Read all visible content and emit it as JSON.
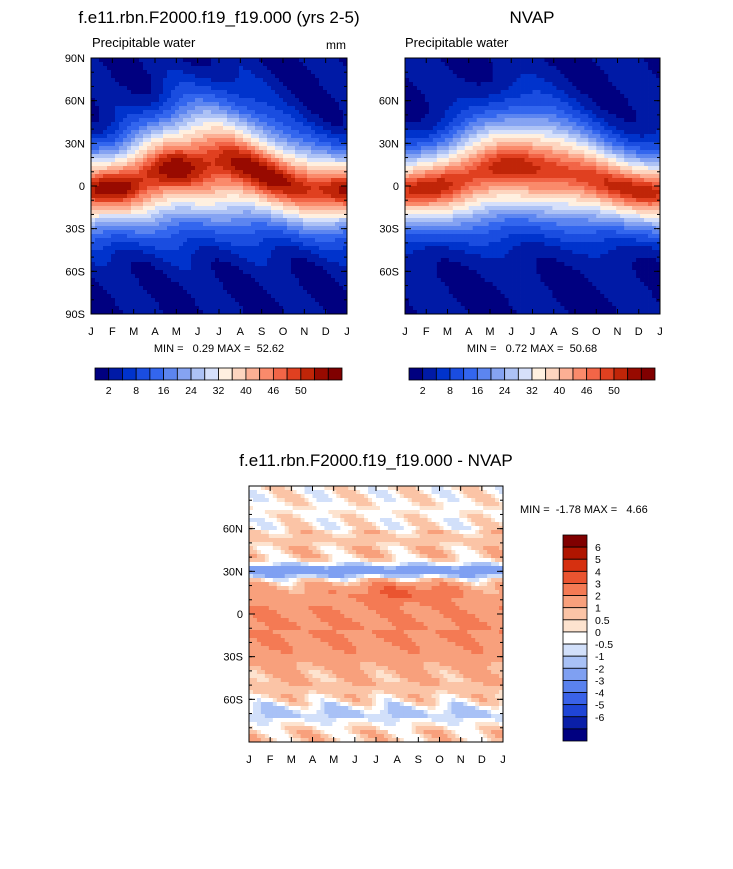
{
  "palettes": {
    "absolute": [
      "#000080",
      "#001aa6",
      "#0033cc",
      "#1a4de0",
      "#3366ee",
      "#5c85f0",
      "#85a3f2",
      "#adc2f5",
      "#d6e0fa",
      "#fff0e0",
      "#fdd5bf",
      "#fcaf94",
      "#fa8a6b",
      "#f26547",
      "#e04020",
      "#c02508",
      "#980a00",
      "#800000"
    ],
    "difference": [
      "#000080",
      "#0a1fa8",
      "#1f45d6",
      "#3a62e8",
      "#5a82ee",
      "#7fa0f2",
      "#a8c1f6",
      "#d2e0fa",
      "#ffffff",
      "#fde3cf",
      "#fbc4a6",
      "#f8a07c",
      "#f47a54",
      "#ea5430",
      "#d63010",
      "#b01500",
      "#800000"
    ]
  },
  "chart_data": [
    {
      "id": "model",
      "type": "heatmap",
      "title": "f.e11.rbn.F2000.f19_f19.000 (yrs 2-5)",
      "left_label": "Precipitable water",
      "right_label": "mm",
      "x": [
        "J",
        "F",
        "M",
        "A",
        "M",
        "J",
        "J",
        "A",
        "S",
        "O",
        "N",
        "D",
        "J"
      ],
      "y_ticks": [
        "90N",
        "60N",
        "30N",
        "0",
        "30S",
        "60S",
        "90S"
      ],
      "y_values": [
        90,
        60,
        30,
        0,
        -30,
        -60,
        -90
      ],
      "ylim": [
        -90,
        90
      ],
      "stats": {
        "min": 0.29,
        "max": 52.62
      },
      "stats_text": "MIN =   0.29 MAX =  52.62",
      "colorbar": {
        "orientation": "horizontal",
        "levels": [
          2,
          5,
          8,
          12,
          16,
          20,
          24,
          28,
          32,
          36,
          40,
          43,
          46,
          48,
          50,
          52,
          54
        ],
        "labels": [
          "2",
          "8",
          "16",
          "24",
          "32",
          "40",
          "46",
          "50"
        ]
      }
    },
    {
      "id": "nvap",
      "type": "heatmap",
      "title": "NVAP",
      "left_label": "Precipitable water",
      "right_label": "",
      "x": [
        "J",
        "F",
        "M",
        "A",
        "M",
        "J",
        "J",
        "A",
        "S",
        "O",
        "N",
        "D",
        "J"
      ],
      "y_ticks": [
        "60N",
        "30N",
        "0",
        "30S",
        "60S"
      ],
      "y_values": [
        60,
        30,
        0,
        -30,
        -60
      ],
      "ylim": [
        -90,
        90
      ],
      "stats": {
        "min": 0.72,
        "max": 50.68
      },
      "stats_text": "MIN =   0.72 MAX =  50.68",
      "colorbar": {
        "orientation": "horizontal",
        "levels": [
          2,
          5,
          8,
          12,
          16,
          20,
          24,
          28,
          32,
          36,
          40,
          43,
          46,
          48,
          50,
          52,
          54
        ],
        "labels": [
          "2",
          "8",
          "16",
          "24",
          "32",
          "40",
          "46",
          "50"
        ]
      }
    },
    {
      "id": "difference",
      "type": "heatmap",
      "title": "f.e11.rbn.F2000.f19_f19.000 - NVAP",
      "left_label": "",
      "right_label": "",
      "x": [
        "J",
        "F",
        "M",
        "A",
        "M",
        "J",
        "J",
        "A",
        "S",
        "O",
        "N",
        "D",
        "J"
      ],
      "y_ticks": [
        "60N",
        "30N",
        "0",
        "30S",
        "60S"
      ],
      "y_values": [
        60,
        30,
        0,
        -30,
        -60
      ],
      "ylim": [
        -90,
        90
      ],
      "stats": {
        "min": -1.78,
        "max": 4.66
      },
      "stats_text": "MIN =  -1.78 MAX =   4.66",
      "colorbar": {
        "orientation": "vertical",
        "labels": [
          "6",
          "5",
          "4",
          "3",
          "2",
          "1",
          "0.5",
          "0",
          "-0.5",
          "-1",
          "-2",
          "-3",
          "-4",
          "-5",
          "-6"
        ]
      }
    }
  ]
}
